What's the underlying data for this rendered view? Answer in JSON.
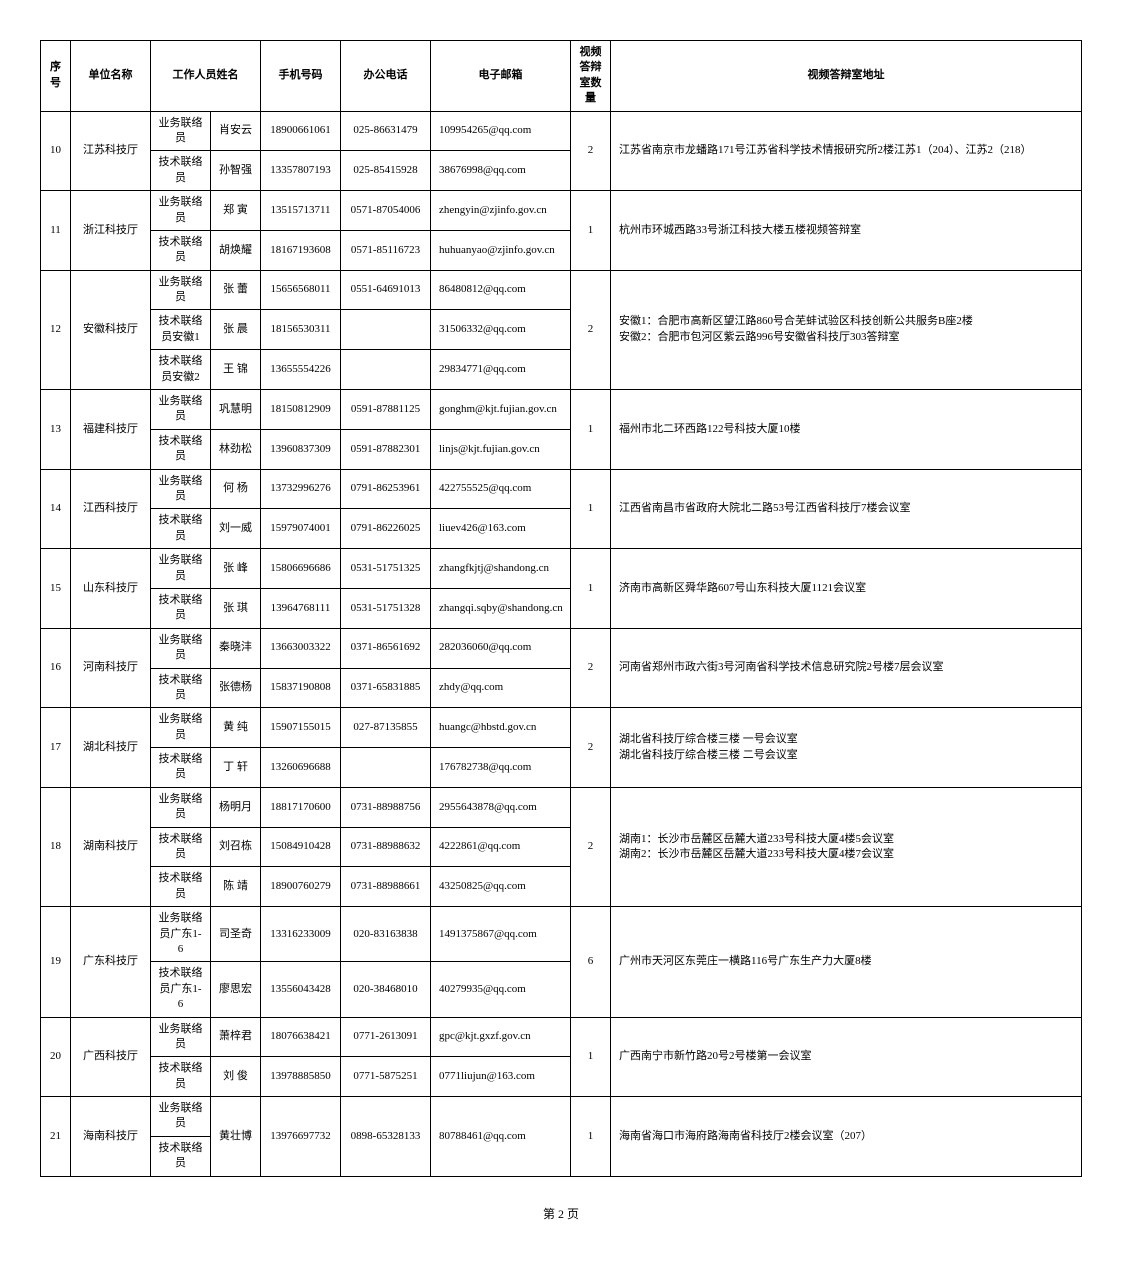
{
  "headers": {
    "seq": "序号",
    "unit": "单位名称",
    "staff": "工作人员姓名",
    "phone": "手机号码",
    "tel": "办公电话",
    "email": "电子邮箱",
    "count": "视频答辩室数量",
    "addr": "视频答辩室地址"
  },
  "footer": "第 2 页",
  "rows": [
    {
      "seq": "10",
      "unit": "江苏科技厅",
      "count": "2",
      "addr": "江苏省南京市龙蟠路171号江苏省科学技术情报研究所2楼江苏1（204）、江苏2（218）",
      "staff": [
        {
          "role": "业务联络员",
          "name": "肖安云",
          "phone": "18900661061",
          "tel": "025-86631479",
          "email": "109954265@qq.com"
        },
        {
          "role": "技术联络员",
          "name": "孙智强",
          "phone": "13357807193",
          "tel": "025-85415928",
          "email": "38676998@qq.com"
        }
      ]
    },
    {
      "seq": "11",
      "unit": "浙江科技厅",
      "count": "1",
      "addr": "杭州市环城西路33号浙江科技大楼五楼视频答辩室",
      "staff": [
        {
          "role": "业务联络员",
          "name": "郑 寅",
          "phone": "13515713711",
          "tel": "0571-87054006",
          "email": "zhengyin@zjinfo.gov.cn"
        },
        {
          "role": "技术联络员",
          "name": "胡焕耀",
          "phone": "18167193608",
          "tel": "0571-85116723",
          "email": "huhuanyao@zjinfo.gov.cn"
        }
      ]
    },
    {
      "seq": "12",
      "unit": "安徽科技厅",
      "count": "2",
      "addr": "安徽1：合肥市高新区望江路860号合芜蚌试验区科技创新公共服务B座2楼\n安徽2：合肥市包河区紫云路996号安徽省科技厅303答辩室",
      "staff": [
        {
          "role": "业务联络员",
          "name": "张 蕾",
          "phone": "15656568011",
          "tel": "0551-64691013",
          "email": "86480812@qq.com"
        },
        {
          "role": "技术联络员安徽1",
          "name": "张 晨",
          "phone": "18156530311",
          "tel": "",
          "email": "31506332@qq.com"
        },
        {
          "role": "技术联络员安徽2",
          "name": "王 锦",
          "phone": "13655554226",
          "tel": "",
          "email": "29834771@qq.com"
        }
      ]
    },
    {
      "seq": "13",
      "unit": "福建科技厅",
      "count": "1",
      "addr": "福州市北二环西路122号科技大厦10楼",
      "staff": [
        {
          "role": "业务联络员",
          "name": "巩慧明",
          "phone": "18150812909",
          "tel": "0591-87881125",
          "email": "gonghm@kjt.fujian.gov.cn"
        },
        {
          "role": "技术联络员",
          "name": "林劲松",
          "phone": "13960837309",
          "tel": "0591-87882301",
          "email": "linjs@kjt.fujian.gov.cn"
        }
      ]
    },
    {
      "seq": "14",
      "unit": "江西科技厅",
      "count": "1",
      "addr": "江西省南昌市省政府大院北二路53号江西省科技厅7楼会议室",
      "staff": [
        {
          "role": "业务联络员",
          "name": "何 杨",
          "phone": "13732996276",
          "tel": "0791-86253961",
          "email": "422755525@qq.com"
        },
        {
          "role": "技术联络员",
          "name": "刘一威",
          "phone": "15979074001",
          "tel": "0791-86226025",
          "email": "liuev426@163.com"
        }
      ]
    },
    {
      "seq": "15",
      "unit": "山东科技厅",
      "count": "1",
      "addr": "济南市高新区舜华路607号山东科技大厦1121会议室",
      "staff": [
        {
          "role": "业务联络员",
          "name": "张 峰",
          "phone": "15806696686",
          "tel": "0531-51751325",
          "email": "zhangfkjtj@shandong.cn"
        },
        {
          "role": "技术联络员",
          "name": "张 琪",
          "phone": "13964768111",
          "tel": "0531-51751328",
          "email": "zhangqi.sqby@shandong.cn"
        }
      ]
    },
    {
      "seq": "16",
      "unit": "河南科技厅",
      "count": "2",
      "addr": "河南省郑州市政六街3号河南省科学技术信息研究院2号楼7层会议室",
      "staff": [
        {
          "role": "业务联络员",
          "name": "秦晓沣",
          "phone": "13663003322",
          "tel": "0371-86561692",
          "email": "282036060@qq.com"
        },
        {
          "role": "技术联络员",
          "name": "张德杨",
          "phone": "15837190808",
          "tel": "0371-65831885",
          "email": "zhdy@qq.com"
        }
      ]
    },
    {
      "seq": "17",
      "unit": "湖北科技厅",
      "count": "2",
      "addr": "湖北省科技厅综合楼三楼 一号会议室\n湖北省科技厅综合楼三楼 二号会议室",
      "staff": [
        {
          "role": "业务联络员",
          "name": "黄 纯",
          "phone": "15907155015",
          "tel": "027-87135855",
          "email": "huangc@hbstd.gov.cn"
        },
        {
          "role": "技术联络员",
          "name": "丁 轩",
          "phone": "13260696688",
          "tel": "",
          "email": "176782738@qq.com"
        }
      ]
    },
    {
      "seq": "18",
      "unit": "湖南科技厅",
      "count": "2",
      "addr": "湖南1：长沙市岳麓区岳麓大道233号科技大厦4楼5会议室\n湖南2：长沙市岳麓区岳麓大道233号科技大厦4楼7会议室",
      "staff": [
        {
          "role": "业务联络员",
          "name": "杨明月",
          "phone": "18817170600",
          "tel": "0731-88988756",
          "email": "2955643878@qq.com"
        },
        {
          "role": "技术联络员",
          "name": "刘召栋",
          "phone": "15084910428",
          "tel": "0731-88988632",
          "email": "4222861@qq.com"
        },
        {
          "role": "技术联络员",
          "name": "陈 靖",
          "phone": "18900760279",
          "tel": "0731-88988661",
          "email": "43250825@qq.com"
        }
      ]
    },
    {
      "seq": "19",
      "unit": "广东科技厅",
      "count": "6",
      "addr": "广州市天河区东莞庄一横路116号广东生产力大厦8楼",
      "staff": [
        {
          "role": "业务联络员广东1-6",
          "name": "司圣奇",
          "phone": "13316233009",
          "tel": "020-83163838",
          "email": "1491375867@qq.com"
        },
        {
          "role": "技术联络员广东1-6",
          "name": "廖思宏",
          "phone": "13556043428",
          "tel": "020-38468010",
          "email": "40279935@qq.com"
        }
      ]
    },
    {
      "seq": "20",
      "unit": "广西科技厅",
      "count": "1",
      "addr": "广西南宁市新竹路20号2号楼第一会议室",
      "staff": [
        {
          "role": "业务联络员",
          "name": "萧梓君",
          "phone": "18076638421",
          "tel": "0771-2613091",
          "email": "gpc@kjt.gxzf.gov.cn"
        },
        {
          "role": "技术联络员",
          "name": "刘 俊",
          "phone": "13978885850",
          "tel": "0771-5875251",
          "email": "0771liujun@163.com"
        }
      ]
    },
    {
      "seq": "21",
      "unit": "海南科技厅",
      "count": "1",
      "addr": "海南省海口市海府路海南省科技厅2楼会议室（207）",
      "staff": [
        {
          "role": "业务联络员",
          "name": "黄壮博",
          "phone": "13976697732",
          "tel": "0898-65328133",
          "email": "80788461@qq.com",
          "name_rowspan": 2,
          "phone_rowspan": 2,
          "tel_rowspan": 2,
          "email_rowspan": 2
        },
        {
          "role": "技术联络员",
          "skip_rest": true
        }
      ]
    }
  ]
}
